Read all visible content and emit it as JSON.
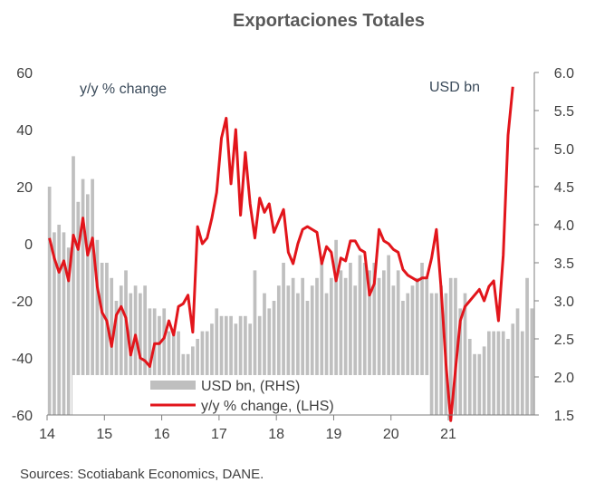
{
  "chart_data": {
    "type": "bar+line",
    "title": "Exportaciones Totales",
    "left_axis_note": "y/y % change",
    "right_axis_note": "USD bn",
    "source": "Sources: Scotiabank Economics, DANE.",
    "x_tick_labels": [
      "14",
      "15",
      "16",
      "17",
      "18",
      "19",
      "20",
      "21"
    ],
    "y_left_ticks": [
      "60",
      "40",
      "20",
      "0",
      "-20",
      "-40",
      "-60"
    ],
    "y_right_ticks": [
      "6.0",
      "5.5",
      "5.0",
      "4.5",
      "4.0",
      "3.5",
      "3.0",
      "2.5",
      "2.0",
      "1.5"
    ],
    "ylim_left": [
      -60,
      60
    ],
    "ylim_right": [
      1.5,
      6.0
    ],
    "x_start_year": 2014,
    "months_per_point": 1,
    "series": [
      {
        "name": "USD bn, (RHS)",
        "axis": "right",
        "kind": "bar",
        "color": "#bfbfbf",
        "values": [
          4.5,
          3.9,
          4.0,
          3.9,
          3.7,
          4.9,
          4.3,
          4.6,
          4.4,
          4.6,
          3.8,
          3.5,
          3.5,
          3.3,
          3.0,
          3.2,
          3.4,
          3.1,
          3.2,
          3.1,
          3.2,
          2.9,
          2.9,
          2.8,
          2.9,
          2.6,
          2.6,
          2.6,
          2.3,
          2.3,
          2.4,
          2.5,
          2.6,
          2.6,
          2.7,
          2.9,
          2.8,
          2.8,
          2.8,
          2.7,
          2.8,
          2.8,
          2.7,
          3.4,
          2.8,
          3.1,
          2.9,
          3.0,
          3.2,
          3.5,
          3.2,
          3.3,
          3.1,
          3.3,
          3.0,
          3.2,
          3.3,
          3.5,
          3.1,
          3.3,
          3.8,
          3.4,
          3.3,
          3.5,
          3.2,
          3.6,
          3.5,
          3.4,
          3.5,
          3.3,
          3.4,
          3.6,
          3.2,
          3.4,
          3.0,
          3.1,
          3.2,
          3.3,
          3.5,
          3.3,
          3.1,
          3.1,
          3.2,
          3.1,
          3.3,
          3.3,
          2.9,
          3.1,
          2.5,
          2.3,
          2.3,
          2.4,
          2.6,
          2.6,
          2.6,
          2.6,
          2.5,
          2.7,
          2.9,
          2.6,
          3.3,
          2.9
        ]
      },
      {
        "name": "y/y % change, (LHS)",
        "axis": "left",
        "kind": "line",
        "color": "#e2151b",
        "values": [
          2,
          -5,
          -10,
          -6,
          -13,
          3,
          -2,
          9,
          -4,
          2,
          -15,
          -24,
          -27,
          -36,
          -25,
          -22,
          -26,
          -39,
          -32,
          -40,
          -41,
          -43,
          -35,
          -35,
          -33,
          -27,
          -32,
          -22,
          -21,
          -18,
          -31,
          6,
          0,
          2,
          9,
          18,
          37,
          44,
          21,
          40,
          10,
          32,
          14,
          2,
          16,
          11,
          14,
          4,
          8,
          12,
          -3,
          -7,
          0,
          5,
          6,
          5,
          4,
          -7,
          -1,
          -3,
          -13,
          -5,
          -6,
          1,
          1,
          -2,
          -3,
          -18,
          -14,
          5,
          1,
          0,
          -2,
          -3,
          -9,
          -11,
          -12,
          -13,
          -12,
          -12,
          -5,
          5,
          -16,
          -42,
          -62,
          -44,
          -27,
          -22,
          -20,
          -18,
          -16,
          -20,
          -15,
          -13,
          -27,
          -4,
          38,
          55
        ],
        "values_scale_note": "y/y % change"
      }
    ],
    "legend": [
      "USD bn, (RHS)",
      "y/y % change, (LHS)"
    ],
    "legend_position": "bottom-center"
  }
}
